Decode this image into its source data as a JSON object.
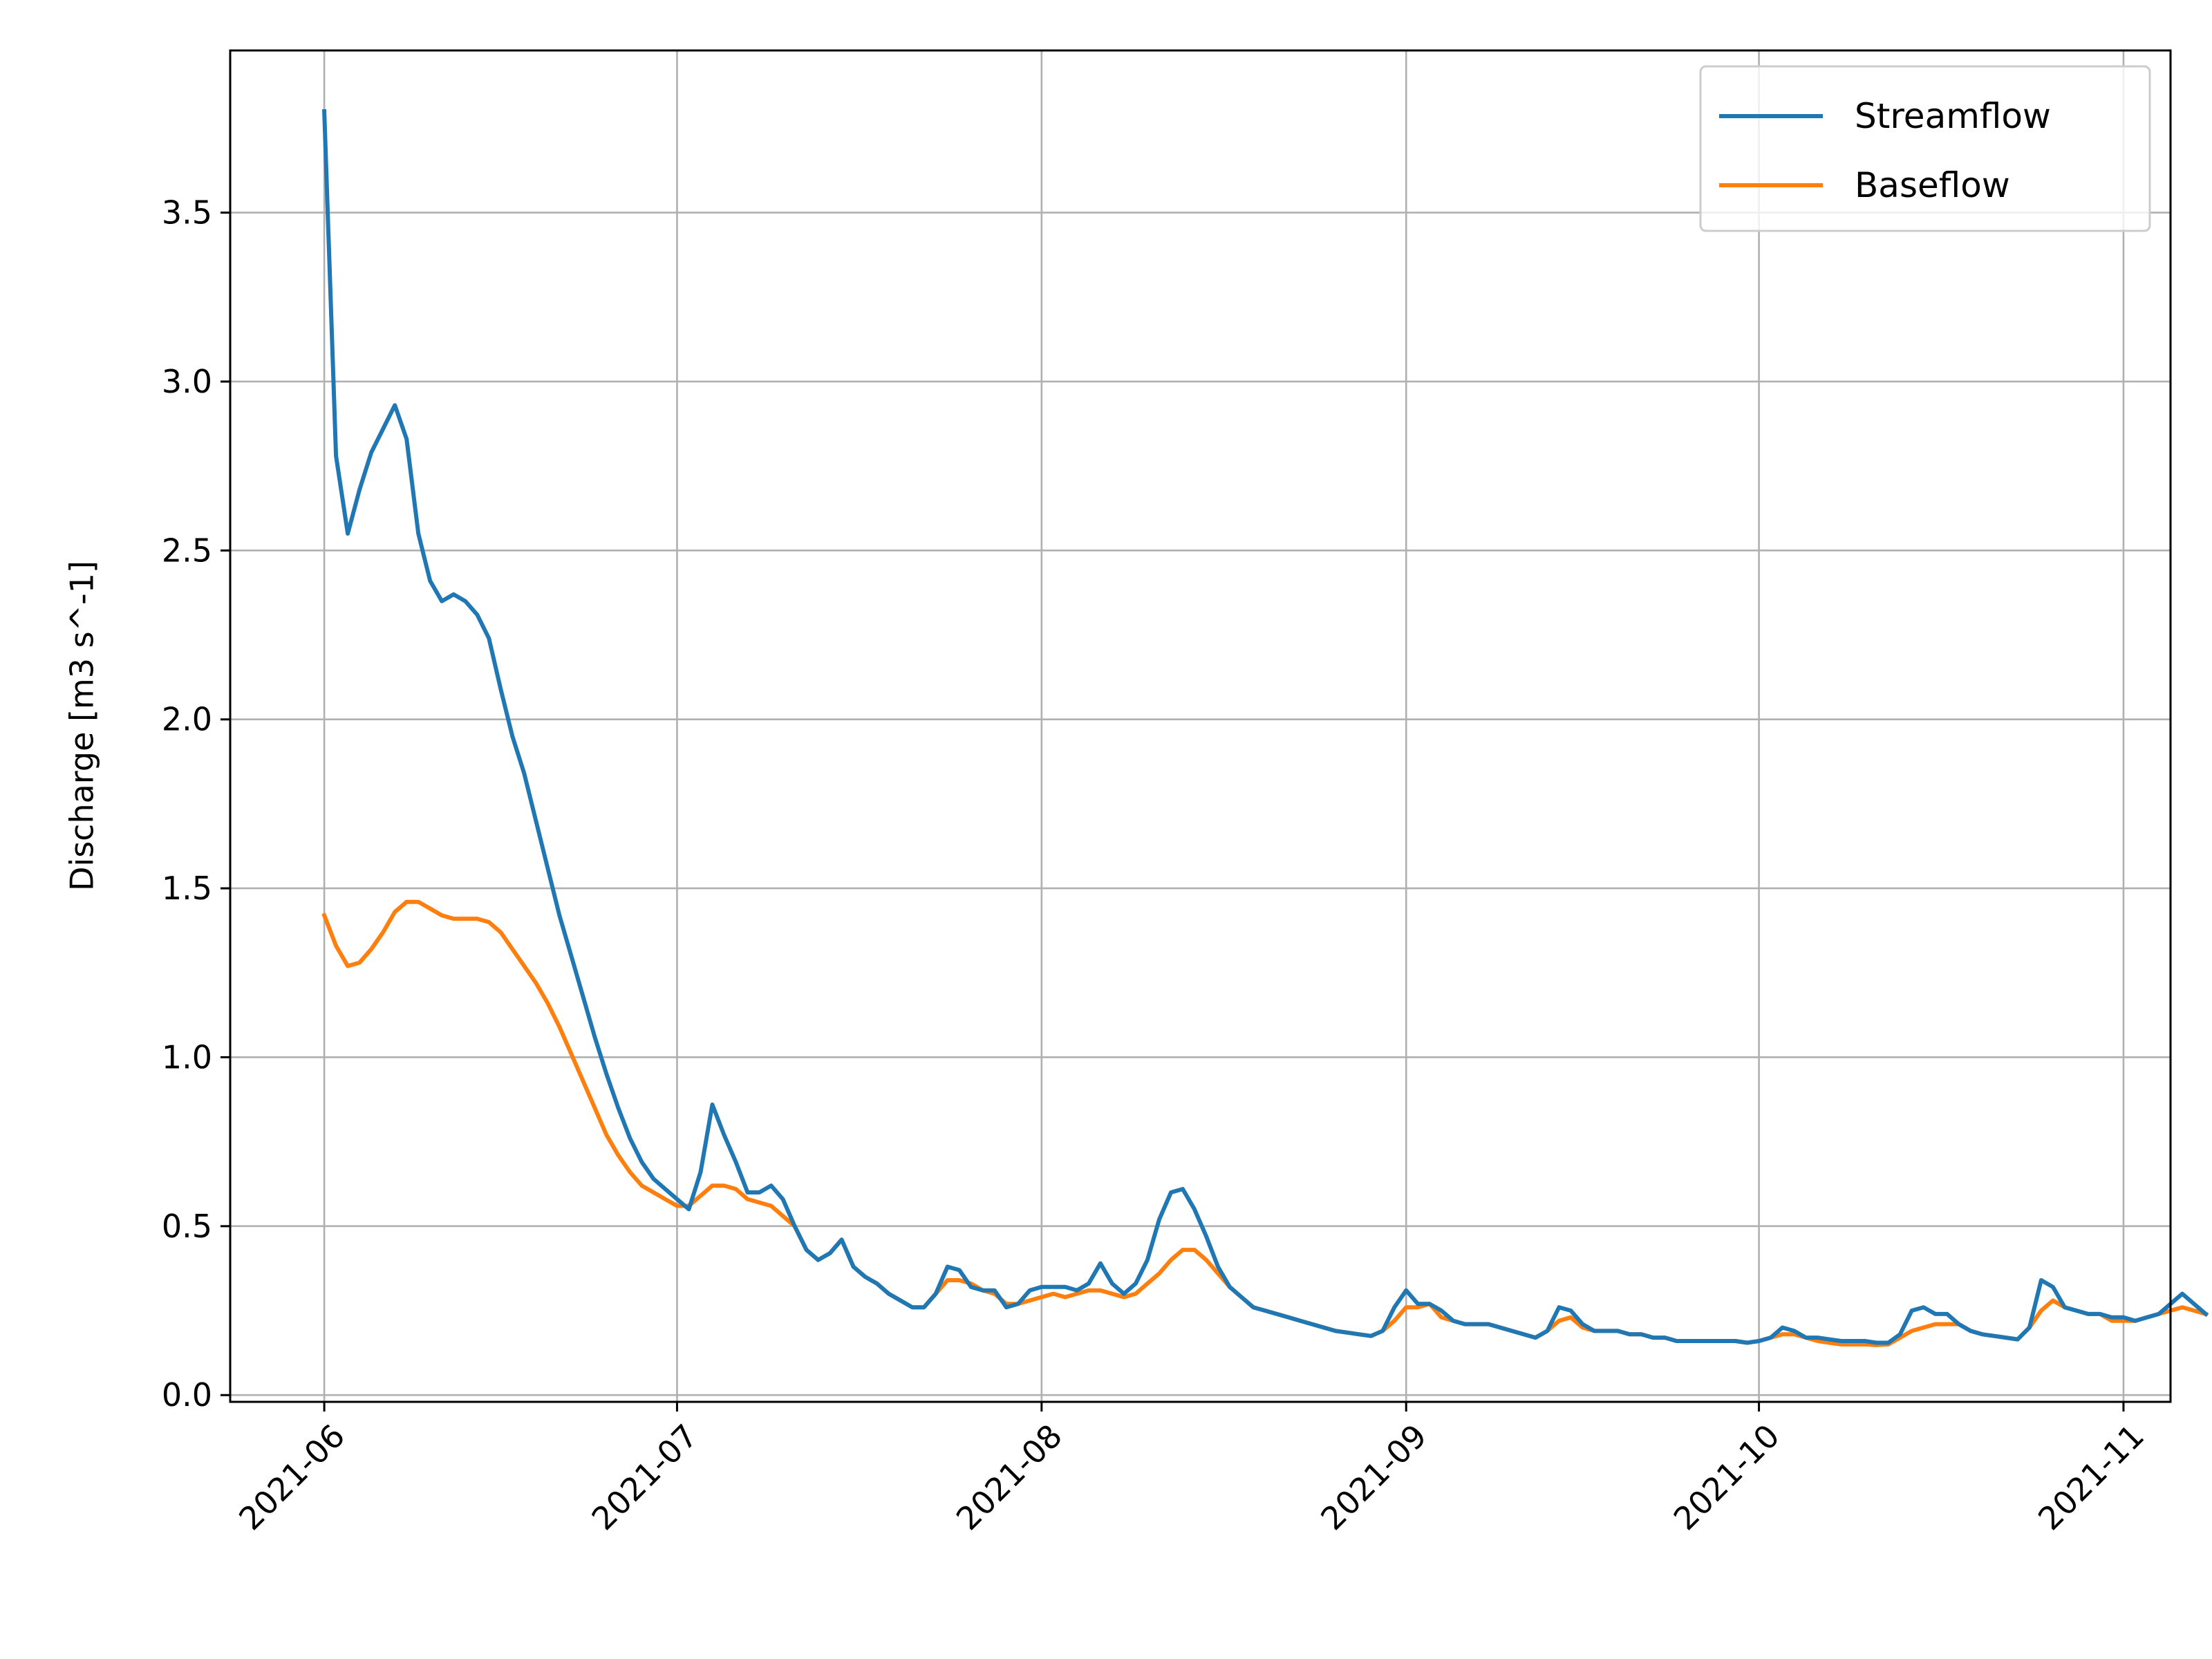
{
  "chart_data": {
    "type": "line",
    "title": "",
    "xlabel": "",
    "ylabel": "Discharge [m3 s^-1]",
    "x_start": "2021-06-01",
    "xlim": [
      "2021-05-24",
      "2021-11-05"
    ],
    "ylim": [
      -0.02,
      3.98
    ],
    "y_ticks": [
      0.0,
      0.5,
      1.0,
      1.5,
      2.0,
      2.5,
      3.0,
      3.5
    ],
    "y_tick_labels": [
      "0.0",
      "0.5",
      "1.0",
      "1.5",
      "2.0",
      "2.5",
      "3.0",
      "3.5"
    ],
    "x_ticks": [
      "2021-06-01",
      "2021-07-01",
      "2021-08-01",
      "2021-09-01",
      "2021-10-01",
      "2021-11-01"
    ],
    "x_tick_labels": [
      "2021-06",
      "2021-07",
      "2021-08",
      "2021-09",
      "2021-10",
      "2021-11"
    ],
    "grid": true,
    "legend_position": "top-right",
    "series": [
      {
        "name": "Streamflow",
        "color": "#1f77b4",
        "values": [
          3.8,
          2.78,
          2.55,
          2.68,
          2.79,
          2.86,
          2.93,
          2.83,
          2.55,
          2.41,
          2.35,
          2.37,
          2.35,
          2.31,
          2.24,
          2.09,
          1.95,
          1.84,
          1.7,
          1.56,
          1.42,
          1.3,
          1.18,
          1.06,
          0.95,
          0.85,
          0.76,
          0.69,
          0.64,
          0.61,
          0.58,
          0.55,
          0.66,
          0.86,
          0.77,
          0.69,
          0.6,
          0.6,
          0.62,
          0.58,
          0.5,
          0.43,
          0.4,
          0.42,
          0.46,
          0.38,
          0.35,
          0.33,
          0.3,
          0.28,
          0.26,
          0.26,
          0.3,
          0.38,
          0.37,
          0.32,
          0.31,
          0.31,
          0.26,
          0.27,
          0.31,
          0.32,
          0.32,
          0.32,
          0.31,
          0.33,
          0.39,
          0.33,
          0.3,
          0.33,
          0.4,
          0.52,
          0.6,
          0.61,
          0.55,
          0.47,
          0.38,
          0.32,
          0.29,
          0.26,
          0.25,
          0.24,
          0.23,
          0.22,
          0.21,
          0.2,
          0.19,
          0.185,
          0.18,
          0.175,
          0.19,
          0.26,
          0.31,
          0.27,
          0.27,
          0.25,
          0.22,
          0.21,
          0.21,
          0.21,
          0.2,
          0.19,
          0.18,
          0.17,
          0.19,
          0.26,
          0.25,
          0.21,
          0.19,
          0.19,
          0.19,
          0.18,
          0.18,
          0.17,
          0.17,
          0.16,
          0.16,
          0.16,
          0.16,
          0.16,
          0.16,
          0.155,
          0.16,
          0.17,
          0.2,
          0.19,
          0.17,
          0.17,
          0.165,
          0.16,
          0.16,
          0.16,
          0.155,
          0.155,
          0.18,
          0.25,
          0.26,
          0.24,
          0.24,
          0.21,
          0.19,
          0.18,
          0.175,
          0.17,
          0.165,
          0.2,
          0.34,
          0.32,
          0.26,
          0.25,
          0.24,
          0.24,
          0.23,
          0.23,
          0.22,
          0.23,
          0.24,
          0.27,
          0.3,
          0.27,
          0.24
        ]
      },
      {
        "name": "Baseflow",
        "color": "#ff7f0e",
        "values": [
          1.42,
          1.33,
          1.27,
          1.28,
          1.32,
          1.37,
          1.43,
          1.46,
          1.46,
          1.44,
          1.42,
          1.41,
          1.41,
          1.41,
          1.4,
          1.37,
          1.32,
          1.27,
          1.22,
          1.16,
          1.09,
          1.01,
          0.93,
          0.85,
          0.77,
          0.71,
          0.66,
          0.62,
          0.6,
          0.58,
          0.56,
          0.56,
          0.59,
          0.62,
          0.62,
          0.61,
          0.58,
          0.57,
          0.56,
          0.53,
          0.5,
          0.43,
          0.4,
          0.42,
          0.46,
          0.38,
          0.35,
          0.33,
          0.3,
          0.28,
          0.26,
          0.26,
          0.3,
          0.34,
          0.34,
          0.33,
          0.31,
          0.3,
          0.27,
          0.27,
          0.28,
          0.29,
          0.3,
          0.29,
          0.3,
          0.31,
          0.31,
          0.3,
          0.29,
          0.3,
          0.33,
          0.36,
          0.4,
          0.43,
          0.43,
          0.4,
          0.36,
          0.32,
          0.29,
          0.26,
          0.25,
          0.24,
          0.23,
          0.22,
          0.21,
          0.2,
          0.19,
          0.185,
          0.18,
          0.175,
          0.19,
          0.22,
          0.26,
          0.26,
          0.27,
          0.23,
          0.22,
          0.21,
          0.21,
          0.21,
          0.2,
          0.19,
          0.18,
          0.17,
          0.19,
          0.22,
          0.23,
          0.2,
          0.19,
          0.19,
          0.19,
          0.18,
          0.18,
          0.17,
          0.17,
          0.16,
          0.16,
          0.16,
          0.16,
          0.16,
          0.16,
          0.155,
          0.16,
          0.17,
          0.18,
          0.18,
          0.17,
          0.16,
          0.155,
          0.15,
          0.15,
          0.15,
          0.148,
          0.15,
          0.17,
          0.19,
          0.2,
          0.21,
          0.21,
          0.21,
          0.19,
          0.18,
          0.175,
          0.17,
          0.165,
          0.2,
          0.25,
          0.28,
          0.26,
          0.25,
          0.24,
          0.24,
          0.22,
          0.22,
          0.22,
          0.23,
          0.24,
          0.25,
          0.26,
          0.25,
          0.24
        ]
      }
    ]
  }
}
